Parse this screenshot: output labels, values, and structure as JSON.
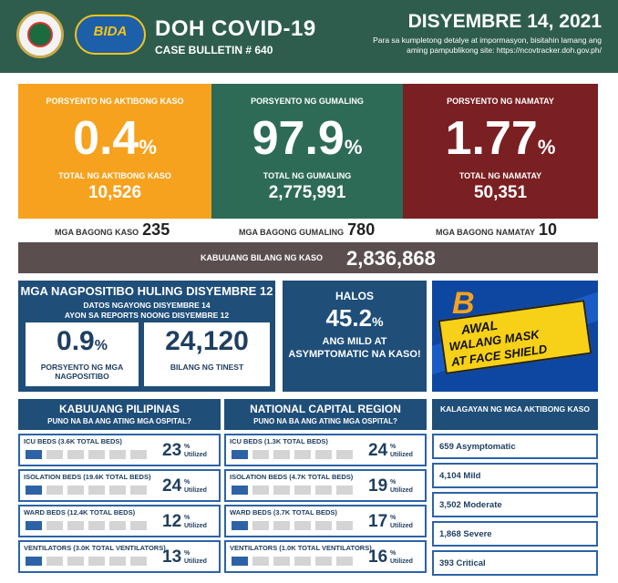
{
  "header": {
    "title": "DOH COVID-19",
    "bulletin": "CASE BULLETIN # 640",
    "date": "DISYEMBRE 14, 2021",
    "info": "Para sa kumpletong detalye at impormasyon, bisitahin lamang ang aming pampublikong site: https://ncovtracker.doh.gov.ph/",
    "logo_text": "BIDA"
  },
  "stats": {
    "active": {
      "label": "PORSYENTO NG AKTIBONG KASO",
      "pct": "0.4",
      "unit": "%",
      "total_label": "TOTAL NG AKTIBONG KASO",
      "total": "10,526"
    },
    "recovered": {
      "label": "PORSYENTO NG GUMALING",
      "pct": "97.9",
      "unit": "%",
      "total_label": "TOTAL NG GUMALING",
      "total": "2,775,991"
    },
    "deaths": {
      "label": "PORSYENTO NG NAMATAY",
      "pct": "1.77",
      "unit": "%",
      "total_label": "TOTAL NG NAMATAY",
      "total": "50,351"
    }
  },
  "new": {
    "cases_label": "MGA BAGONG KASO",
    "cases": "235",
    "recovered_label": "MGA BAGONG GUMALING",
    "recovered": "780",
    "deaths_label": "MGA BAGONG NAMATAY",
    "deaths": "10"
  },
  "total": {
    "label": "KABUUANG BILANG NG KASO",
    "value": "2,836,868"
  },
  "positivity": {
    "title": "MGA NAGPOSITIBO HULING DISYEMBRE 12",
    "sub1": "DATOS NGAYONG DISYEMBRE 14",
    "sub2": "AYON SA REPORTS NOONG DISYEMBRE 12",
    "rate": "0.9",
    "rate_unit": "%",
    "rate_label": "PORSYENTO NG MGA NAGPOSITIBO",
    "tested": "24,120",
    "tested_label": "BILANG NG TINEST"
  },
  "halos": {
    "title": "HALOS",
    "pct": "45.2",
    "unit": "%",
    "desc": "ANG MILD AT ASYMPTOMATIC NA KASO!"
  },
  "banner": {
    "b": "B",
    "line1": "AWAL",
    "line2": "WALANG MASK",
    "line3": "AT FACE SHIELD"
  },
  "hospital_ph": {
    "title": "KABUUANG PILIPINAS",
    "subtitle": "PUNO NA BA ANG ATING MGA OSPITAL?",
    "rows": [
      {
        "label": "ICU BEDS (3.6K TOTAL BEDS)",
        "value": "23",
        "unit": "%",
        "suffix": "Utilized",
        "fraction": 0.23
      },
      {
        "label": "ISOLATION BEDS (19.6K TOTAL BEDS)",
        "value": "24",
        "unit": "%",
        "suffix": "Utilized",
        "fraction": 0.24
      },
      {
        "label": "WARD BEDS (12.4K TOTAL BEDS)",
        "value": "12",
        "unit": "%",
        "suffix": "Utilized",
        "fraction": 0.12
      },
      {
        "label": "VENTILATORS (3.0K TOTAL VENTILATORS)",
        "value": "13",
        "unit": "%",
        "suffix": "Utilized",
        "fraction": 0.13
      }
    ]
  },
  "hospital_ncr": {
    "title": "NATIONAL CAPITAL REGION",
    "subtitle": "PUNO NA BA ANG ATING MGA OSPITAL?",
    "rows": [
      {
        "label": "ICU BEDS (1.3K TOTAL BEDS)",
        "value": "24",
        "unit": "%",
        "suffix": "Utilized",
        "fraction": 0.24
      },
      {
        "label": "ISOLATION BEDS (4.7K TOTAL BEDS)",
        "value": "19",
        "unit": "%",
        "suffix": "Utilized",
        "fraction": 0.19
      },
      {
        "label": "WARD BEDS (3.7K TOTAL BEDS)",
        "value": "17",
        "unit": "%",
        "suffix": "Utilized",
        "fraction": 0.17
      },
      {
        "label": "VENTILATORS (1.0K TOTAL VENTILATORS)",
        "value": "16",
        "unit": "%",
        "suffix": "Utilized",
        "fraction": 0.16
      }
    ]
  },
  "active_cases": {
    "title": "KALAGAYAN NG MGA AKTIBONG KASO",
    "items": [
      "659 Asymptomatic",
      "4,104 Mild",
      "3,502 Moderate",
      "1,868 Severe",
      "393 Critical"
    ]
  }
}
